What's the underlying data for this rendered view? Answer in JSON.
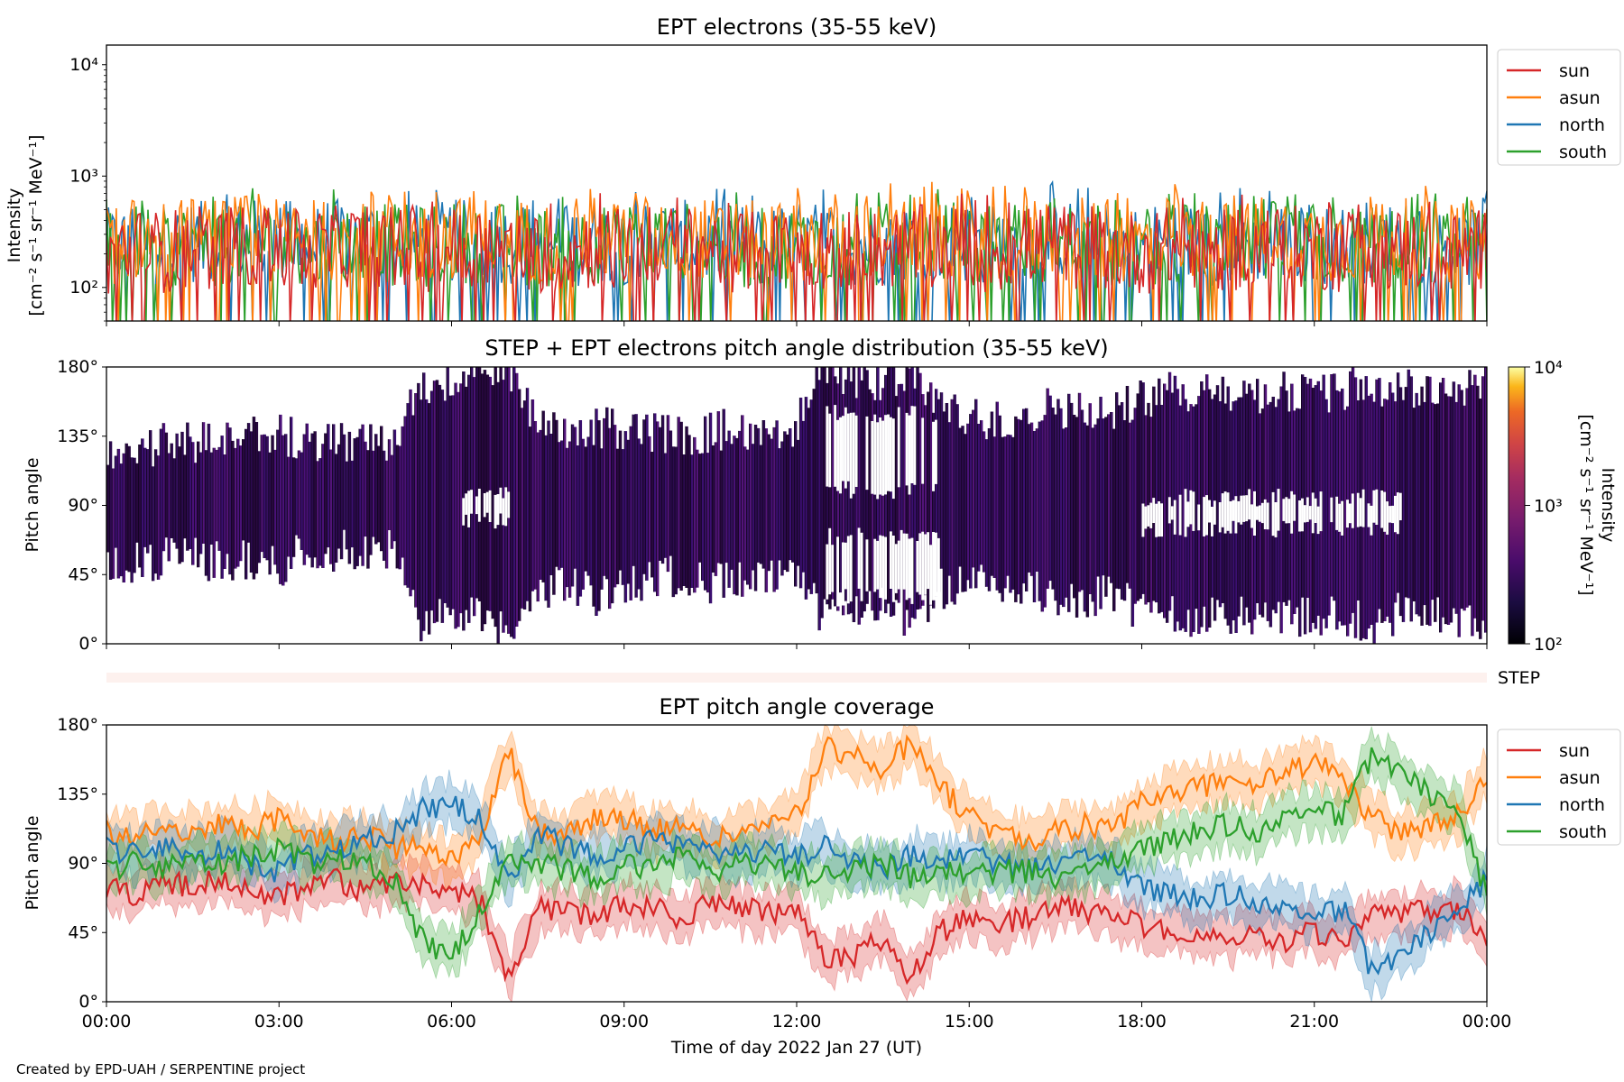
{
  "credit": "Created by EPD-UAH / SERPENTINE project",
  "xlabel": "Time of day 2022 Jan 27 (UT)",
  "chart_data": [
    {
      "id": "intensity",
      "type": "line",
      "title": "EPT electrons (35-55 keV)",
      "ylabel_line1": "Intensity",
      "ylabel_line2": "[cm⁻² s⁻¹ sr⁻¹ MeV⁻¹]",
      "yscale": "log",
      "ylim": [
        50,
        15000
      ],
      "yticks": [
        {
          "value": 100,
          "label": "10²"
        },
        {
          "value": 1000,
          "label": "10³"
        },
        {
          "value": 10000,
          "label": "10⁴"
        }
      ],
      "xlim": [
        0,
        24
      ],
      "legend": "outside-top-right",
      "series": [
        {
          "name": "north",
          "color": "#1f77b4",
          "values": [
            220,
            250,
            230,
            260,
            240,
            270,
            250,
            230,
            260,
            280,
            250,
            240,
            260,
            270,
            250,
            240,
            230,
            260,
            250,
            270,
            260,
            250,
            240,
            230,
            250,
            260,
            240,
            250,
            260,
            270,
            250,
            240,
            260,
            280,
            250,
            240,
            230,
            260,
            250,
            240,
            260,
            270,
            250,
            240,
            260,
            250,
            240,
            230,
            250
          ]
        },
        {
          "name": "south",
          "color": "#2ca02c",
          "values": [
            210,
            240,
            220,
            250,
            230,
            260,
            240,
            220,
            250,
            270,
            240,
            230,
            250,
            260,
            240,
            230,
            220,
            250,
            240,
            260,
            250,
            240,
            230,
            220,
            240,
            250,
            230,
            240,
            250,
            260,
            240,
            230,
            250,
            270,
            240,
            230,
            220,
            250,
            240,
            230,
            250,
            260,
            240,
            230,
            250,
            240,
            230,
            220,
            240
          ]
        },
        {
          "name": "asun",
          "color": "#ff7f0e",
          "values": [
            240,
            270,
            250,
            280,
            260,
            300,
            270,
            250,
            280,
            300,
            270,
            260,
            280,
            290,
            270,
            260,
            250,
            280,
            270,
            290,
            280,
            270,
            260,
            250,
            270,
            280,
            260,
            270,
            280,
            300,
            270,
            260,
            280,
            300,
            270,
            260,
            250,
            280,
            270,
            260,
            280,
            290,
            270,
            260,
            280,
            270,
            260,
            250,
            270
          ]
        },
        {
          "name": "sun",
          "color": "#d62728",
          "values": [
            200,
            220,
            210,
            230,
            215,
            240,
            220,
            205,
            230,
            245,
            220,
            210,
            230,
            240,
            220,
            210,
            200,
            230,
            220,
            240,
            230,
            220,
            210,
            200,
            220,
            230,
            210,
            220,
            230,
            240,
            220,
            210,
            230,
            245,
            220,
            210,
            200,
            230,
            220,
            210,
            230,
            240,
            220,
            210,
            230,
            220,
            210,
            200,
            220
          ]
        }
      ]
    },
    {
      "id": "pad",
      "type": "heatmap",
      "title": "STEP + EPT electrons pitch angle distribution (35-55 keV)",
      "ylabel": "Pitch angle",
      "ylim": [
        0,
        180
      ],
      "yticks": [
        "0°",
        "45°",
        "90°",
        "135°",
        "180°"
      ],
      "xlim": [
        0,
        24
      ],
      "colorbar": {
        "label_line1": "Intensity",
        "label_line2": "[cm⁻² s⁻¹ sr⁻¹ MeV⁻¹]",
        "scale": "log",
        "range": [
          100,
          10000
        ],
        "ticks": [
          "10²",
          "10³",
          "10⁴"
        ],
        "colormap": "inferno"
      },
      "band_hours": [
        0,
        0.5,
        1,
        1.5,
        2,
        2.5,
        3,
        3.5,
        4,
        4.5,
        5,
        5.5,
        6,
        6.5,
        7,
        7.5,
        8,
        8.5,
        9,
        9.5,
        10,
        10.5,
        11,
        11.5,
        12,
        12.5,
        13,
        13.5,
        14,
        14.5,
        15,
        15.5,
        16,
        16.5,
        17,
        17.5,
        18,
        18.5,
        19,
        19.5,
        20,
        20.5,
        21,
        21.5,
        22,
        22.5,
        23,
        23.5,
        24
      ],
      "band_low": [
        55,
        52,
        55,
        57,
        53,
        54,
        50,
        62,
        60,
        62,
        60,
        5,
        25,
        15,
        5,
        35,
        40,
        30,
        40,
        42,
        45,
        40,
        40,
        42,
        42,
        15,
        25,
        25,
        15,
        35,
        40,
        40,
        35,
        30,
        30,
        35,
        20,
        20,
        15,
        20,
        15,
        20,
        15,
        20,
        10,
        20,
        20,
        15,
        10
      ],
      "band_high": [
        125,
        128,
        130,
        130,
        132,
        135,
        138,
        130,
        130,
        130,
        130,
        170,
        170,
        180,
        178,
        140,
        135,
        140,
        140,
        138,
        135,
        138,
        140,
        140,
        142,
        178,
        170,
        170,
        178,
        150,
        148,
        145,
        150,
        155,
        150,
        150,
        160,
        165,
        160,
        165,
        160,
        165,
        160,
        165,
        170,
        165,
        165,
        165,
        175
      ],
      "gaps": [
        {
          "hours": [
            12.5,
            14.5
          ],
          "pa": [
            100,
            150
          ]
        },
        {
          "hours": [
            12.5,
            14.5
          ],
          "pa": [
            30,
            70
          ]
        },
        {
          "hours": [
            18.0,
            22.5
          ],
          "pa": [
            75,
            95
          ]
        },
        {
          "hours": [
            6.2,
            7.0
          ],
          "pa": [
            80,
            100
          ]
        }
      ]
    },
    {
      "id": "step",
      "type": "heatmap",
      "label": "STEP",
      "color": "#fdf1ee"
    },
    {
      "id": "coverage",
      "type": "line",
      "title": "EPT pitch angle coverage",
      "ylabel": "Pitch angle",
      "ylim": [
        0,
        180
      ],
      "yticks": [
        "0°",
        "45°",
        "90°",
        "135°",
        "180°"
      ],
      "xlim": [
        0,
        24
      ],
      "xticks": [
        "00:00",
        "03:00",
        "06:00",
        "09:00",
        "12:00",
        "15:00",
        "18:00",
        "21:00",
        "00:00"
      ],
      "legend": "outside-top-right",
      "x_hours": [
        0,
        0.5,
        1,
        1.5,
        2,
        2.5,
        3,
        3.5,
        4,
        4.5,
        5,
        5.5,
        6,
        6.5,
        7,
        7.5,
        8,
        8.5,
        9,
        9.5,
        10,
        10.5,
        11,
        11.5,
        12,
        12.5,
        13,
        13.5,
        14,
        14.5,
        15,
        15.5,
        16,
        16.5,
        17,
        17.5,
        18,
        18.5,
        19,
        19.5,
        20,
        20.5,
        21,
        21.5,
        22,
        22.5,
        23,
        23.5,
        24
      ],
      "series": [
        {
          "name": "sun",
          "color": "#d62728",
          "values": [
            75,
            70,
            78,
            75,
            80,
            72,
            68,
            75,
            80,
            70,
            80,
            75,
            70,
            65,
            15,
            60,
            60,
            55,
            65,
            60,
            55,
            65,
            60,
            58,
            60,
            25,
            30,
            40,
            15,
            45,
            55,
            50,
            55,
            60,
            60,
            55,
            50,
            45,
            45,
            40,
            45,
            40,
            45,
            40,
            55,
            55,
            60,
            60,
            40
          ]
        },
        {
          "name": "asun",
          "color": "#ff7f0e",
          "values": [
            110,
            105,
            115,
            110,
            115,
            112,
            118,
            110,
            105,
            108,
            100,
            100,
            90,
            110,
            165,
            110,
            110,
            120,
            120,
            110,
            115,
            105,
            110,
            115,
            120,
            165,
            160,
            150,
            170,
            140,
            120,
            110,
            105,
            110,
            115,
            110,
            130,
            135,
            140,
            145,
            140,
            150,
            155,
            145,
            120,
            110,
            115,
            120,
            150
          ]
        },
        {
          "name": "north",
          "color": "#1f77b4",
          "values": [
            100,
            95,
            100,
            95,
            100,
            90,
            85,
            95,
            100,
            105,
            110,
            125,
            130,
            120,
            80,
            110,
            100,
            95,
            100,
            105,
            100,
            100,
            95,
            100,
            95,
            100,
            90,
            85,
            95,
            90,
            95,
            90,
            85,
            90,
            95,
            90,
            75,
            70,
            65,
            70,
            65,
            60,
            55,
            60,
            20,
            30,
            45,
            60,
            80
          ]
        },
        {
          "name": "south",
          "color": "#2ca02c",
          "values": [
            85,
            90,
            85,
            95,
            90,
            95,
            100,
            90,
            95,
            90,
            80,
            40,
            30,
            60,
            95,
            90,
            85,
            80,
            90,
            85,
            95,
            85,
            90,
            90,
            85,
            80,
            85,
            90,
            80,
            85,
            80,
            85,
            85,
            80,
            85,
            90,
            100,
            105,
            110,
            115,
            110,
            120,
            125,
            120,
            160,
            150,
            135,
            125,
            70
          ]
        }
      ]
    }
  ]
}
